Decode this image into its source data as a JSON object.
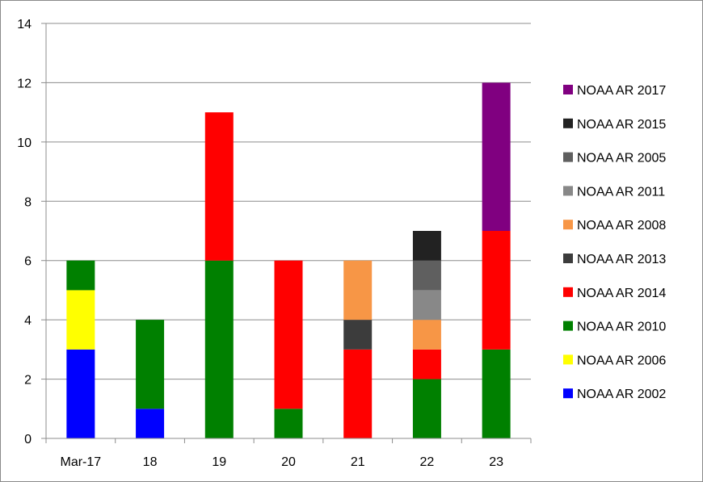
{
  "chart_data": {
    "type": "bar",
    "stacked": true,
    "title": "",
    "xlabel": "",
    "ylabel": "",
    "categories": [
      "Mar-17",
      "18",
      "19",
      "20",
      "21",
      "22",
      "23"
    ],
    "ylim": [
      0,
      14
    ],
    "yticks": [
      0,
      2,
      4,
      6,
      8,
      10,
      12,
      14
    ],
    "grid": "horizontal",
    "legend_position": "right",
    "series": [
      {
        "name": "NOAA AR 2002",
        "color": "#0000ff",
        "values": [
          3,
          1,
          0,
          0,
          0,
          0,
          0
        ]
      },
      {
        "name": "NOAA AR 2006",
        "color": "#ffff00",
        "values": [
          2,
          0,
          0,
          0,
          0,
          0,
          0
        ]
      },
      {
        "name": "NOAA AR 2010",
        "color": "#008000",
        "values": [
          1,
          3,
          6,
          1,
          0,
          2,
          3
        ]
      },
      {
        "name": "NOAA AR 2014",
        "color": "#ff0000",
        "values": [
          0,
          0,
          5,
          5,
          3,
          1,
          4
        ]
      },
      {
        "name": "NOAA AR 2013",
        "color": "#3c3c3c",
        "values": [
          0,
          0,
          0,
          0,
          1,
          0,
          0
        ]
      },
      {
        "name": "NOAA AR 2008",
        "color": "#f79646",
        "values": [
          0,
          0,
          0,
          0,
          2,
          1,
          0
        ]
      },
      {
        "name": "NOAA AR 2011",
        "color": "#888888",
        "values": [
          0,
          0,
          0,
          0,
          0,
          1,
          0
        ]
      },
      {
        "name": "NOAA AR 2005",
        "color": "#5f5f5f",
        "values": [
          0,
          0,
          0,
          0,
          0,
          1,
          0
        ]
      },
      {
        "name": "NOAA AR 2015",
        "color": "#222222",
        "values": [
          0,
          0,
          0,
          0,
          0,
          1,
          0
        ]
      },
      {
        "name": "NOAA AR 2017",
        "color": "#800080",
        "values": [
          0,
          0,
          0,
          0,
          0,
          0,
          5
        ]
      }
    ]
  }
}
